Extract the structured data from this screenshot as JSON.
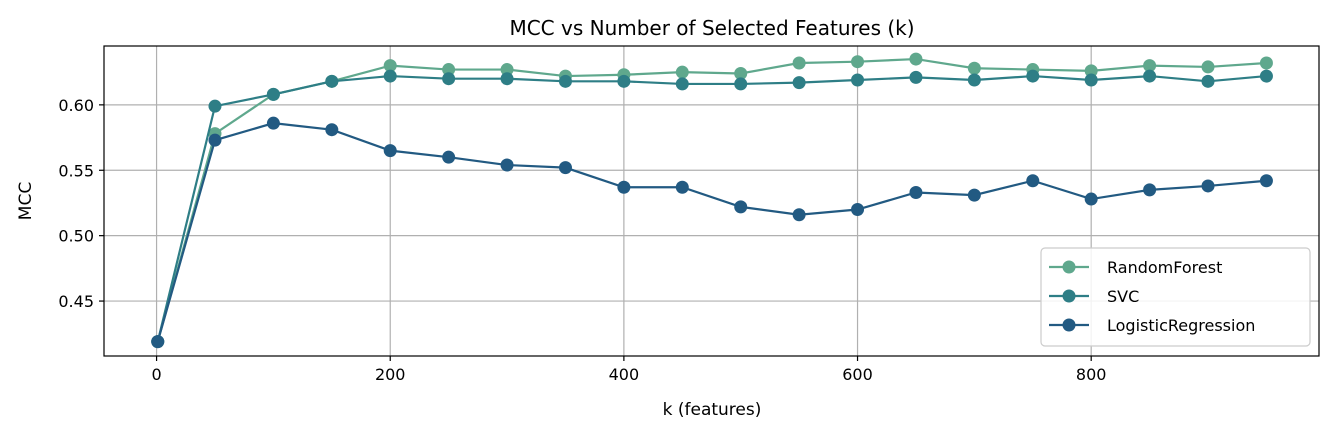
{
  "chart_data": {
    "type": "line",
    "title": "MCC vs Number of Selected Features (k)",
    "xlabel": "k (features)",
    "ylabel": "MCC",
    "xlim": [
      -45,
      995
    ],
    "ylim": [
      0.408,
      0.645
    ],
    "xticks": [
      0,
      200,
      400,
      600,
      800
    ],
    "xtick_labels": [
      "0",
      "200",
      "400",
      "600",
      "800"
    ],
    "yticks": [
      0.45,
      0.5,
      0.55,
      0.6
    ],
    "ytick_labels": [
      "0.45",
      "0.50",
      "0.55",
      "0.60"
    ],
    "grid": true,
    "legend_position": "lower-right",
    "x": [
      1,
      50,
      100,
      150,
      200,
      250,
      300,
      350,
      400,
      450,
      500,
      550,
      600,
      650,
      700,
      750,
      800,
      850,
      900,
      950
    ],
    "series": [
      {
        "name": "RandomForest",
        "color": "#5fa88d",
        "values": [
          0.419,
          0.578,
          0.608,
          0.618,
          0.63,
          0.627,
          0.627,
          0.622,
          0.623,
          0.625,
          0.624,
          0.632,
          0.633,
          0.635,
          0.628,
          0.627,
          0.626,
          0.63,
          0.629,
          0.632
        ]
      },
      {
        "name": "SVC",
        "color": "#2e7e86",
        "values": [
          0.419,
          0.599,
          0.608,
          0.618,
          0.622,
          0.62,
          0.62,
          0.618,
          0.618,
          0.616,
          0.616,
          0.617,
          0.619,
          0.621,
          0.619,
          0.622,
          0.619,
          0.622,
          0.618,
          0.622
        ]
      },
      {
        "name": "LogisticRegression",
        "color": "#225a82",
        "values": [
          0.419,
          0.573,
          0.586,
          0.581,
          0.565,
          0.56,
          0.554,
          0.552,
          0.537,
          0.537,
          0.522,
          0.516,
          0.52,
          0.533,
          0.531,
          0.542,
          0.528,
          0.535,
          0.538,
          0.542
        ]
      }
    ]
  }
}
